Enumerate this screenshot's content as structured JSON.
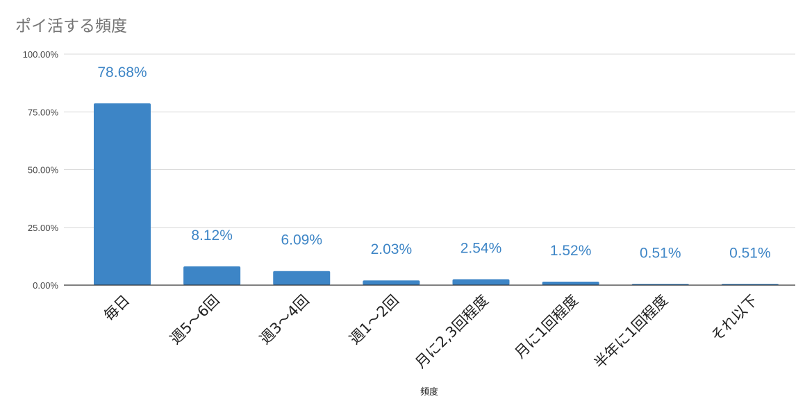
{
  "chart_data": {
    "type": "bar",
    "title": "ポイ活する頻度",
    "xlabel": "頻度",
    "ylabel": "",
    "ylim": [
      0,
      100
    ],
    "y_ticks": [
      "0.00%",
      "25.00%",
      "50.00%",
      "75.00%",
      "100.00%"
    ],
    "categories": [
      "毎日",
      "週5〜6回",
      "週3〜4回",
      "週1〜2回",
      "月に2,3回程度",
      "月に1回程度",
      "半年に1回程度",
      "それ以下"
    ],
    "values": [
      78.68,
      8.12,
      6.09,
      2.03,
      2.54,
      1.52,
      0.51,
      0.51
    ],
    "data_labels": [
      "78.68%",
      "8.12%",
      "6.09%",
      "2.03%",
      "2.54%",
      "1.52%",
      "0.51%",
      "0.51%"
    ],
    "grid": true,
    "legend": "none",
    "colors": {
      "bar": "#3d85c6",
      "label": "#3d85c6",
      "grid": "#d9d9d9",
      "axis": "#333333"
    }
  }
}
